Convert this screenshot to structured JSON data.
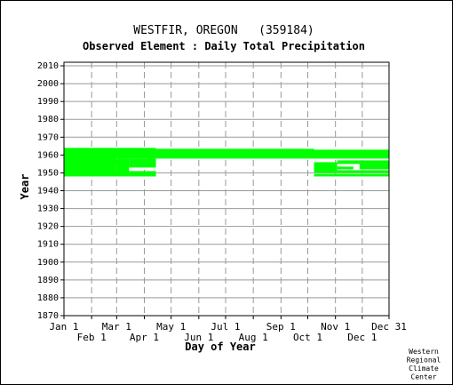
{
  "chart_data": {
    "type": "heatmap",
    "title": "WESTFIR, OREGON   (359184)",
    "subtitle": "Observed Element : Daily Total Precipitation",
    "xlabel": "Day of Year",
    "ylabel": "Year",
    "xlim_day": [
      1,
      365
    ],
    "ylim": [
      1870,
      2012
    ],
    "y_ticks": [
      1870,
      1880,
      1890,
      1900,
      1910,
      1920,
      1930,
      1940,
      1950,
      1960,
      1970,
      1980,
      1990,
      2000,
      2010
    ],
    "x_ticks_top_row": [
      {
        "label": "Jan 1",
        "day": 1
      },
      {
        "label": "Mar 1",
        "day": 60
      },
      {
        "label": "May 1",
        "day": 121
      },
      {
        "label": "Jul 1",
        "day": 182
      },
      {
        "label": "Sep 1",
        "day": 244
      },
      {
        "label": "Nov 1",
        "day": 305
      },
      {
        "label": "Dec 31",
        "day": 365
      }
    ],
    "x_ticks_bottom_row": [
      {
        "label": "Feb 1",
        "day": 32
      },
      {
        "label": "Apr 1",
        "day": 91
      },
      {
        "label": "Jun 1",
        "day": 152
      },
      {
        "label": "Aug 1",
        "day": 213
      },
      {
        "label": "Oct 1",
        "day": 274
      },
      {
        "label": "Dec 1",
        "day": 335
      }
    ],
    "gridlines": true,
    "data_color": "#00ff00",
    "record_blocks": [
      {
        "start_day": 1,
        "end_day": 60,
        "start_year": 1948,
        "end_year": 1964
      },
      {
        "start_day": 60,
        "end_day": 104,
        "start_year": 1958,
        "end_year": 1964
      },
      {
        "start_day": 60,
        "end_day": 74,
        "start_year": 1948,
        "end_year": 1958
      },
      {
        "start_day": 74,
        "end_day": 104,
        "start_year": 1948,
        "end_year": 1951
      },
      {
        "start_day": 74,
        "end_day": 104,
        "start_year": 1953,
        "end_year": 1958
      },
      {
        "start_day": 104,
        "end_day": 281,
        "start_year": 1958,
        "end_year": 1963.5
      },
      {
        "start_day": 281,
        "end_day": 365,
        "start_year": 1958,
        "end_year": 1963
      },
      {
        "start_day": 281,
        "end_day": 365,
        "start_year": 1948,
        "end_year": 1949.5
      },
      {
        "start_day": 281,
        "end_day": 307,
        "start_year": 1950,
        "end_year": 1956
      },
      {
        "start_day": 307,
        "end_day": 365,
        "start_year": 1950,
        "end_year": 1951.5
      },
      {
        "start_day": 307,
        "end_day": 325,
        "start_year": 1952,
        "end_year": 1953.5
      },
      {
        "start_day": 307,
        "end_day": 365,
        "start_year": 1955,
        "end_year": 1957
      },
      {
        "start_day": 332,
        "end_day": 365,
        "start_year": 1952,
        "end_year": 1955
      }
    ]
  },
  "credit": [
    "Western",
    "Regional",
    "Climate",
    "Center"
  ]
}
